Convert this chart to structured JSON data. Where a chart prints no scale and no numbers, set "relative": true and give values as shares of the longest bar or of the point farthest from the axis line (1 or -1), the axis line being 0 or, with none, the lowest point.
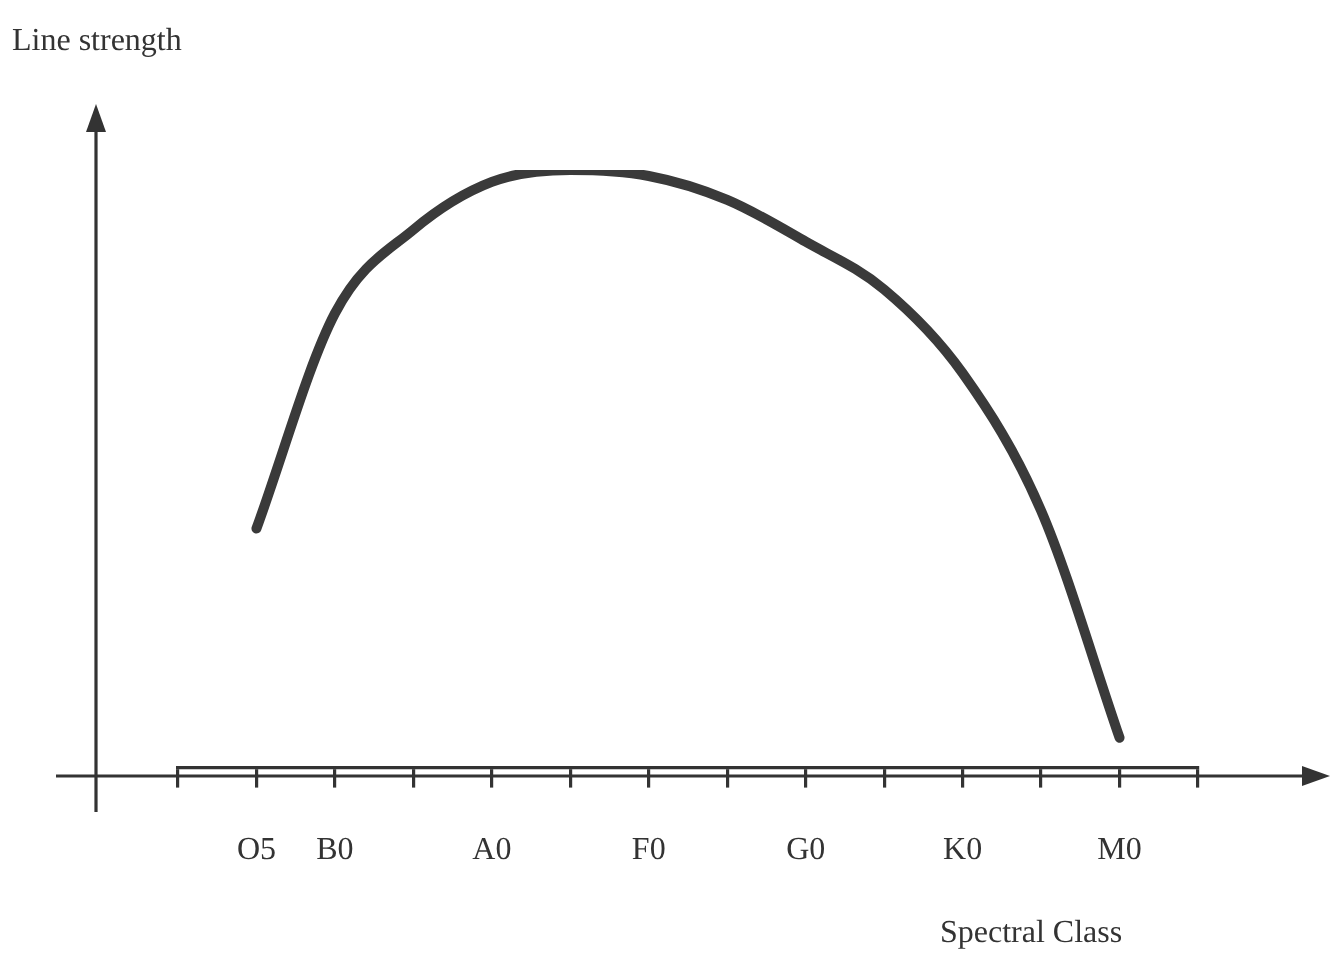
{
  "chart_data": {
    "type": "line",
    "ylabel": "Line strength",
    "xlabel": "Spectral Class",
    "relative": true,
    "categories": [
      null,
      "O5",
      "B0",
      null,
      "A0",
      null,
      "F0",
      null,
      "G0",
      null,
      "K0",
      null,
      "M0",
      null
    ],
    "series": [
      {
        "color": "#3a3a3a",
        "values": [
          null,
          0.4,
          0.76,
          0.9,
          0.98,
          1,
          0.99,
          0.95,
          0.88,
          0.8,
          0.66,
          0.43,
          0.05,
          null
        ]
      }
    ]
  }
}
